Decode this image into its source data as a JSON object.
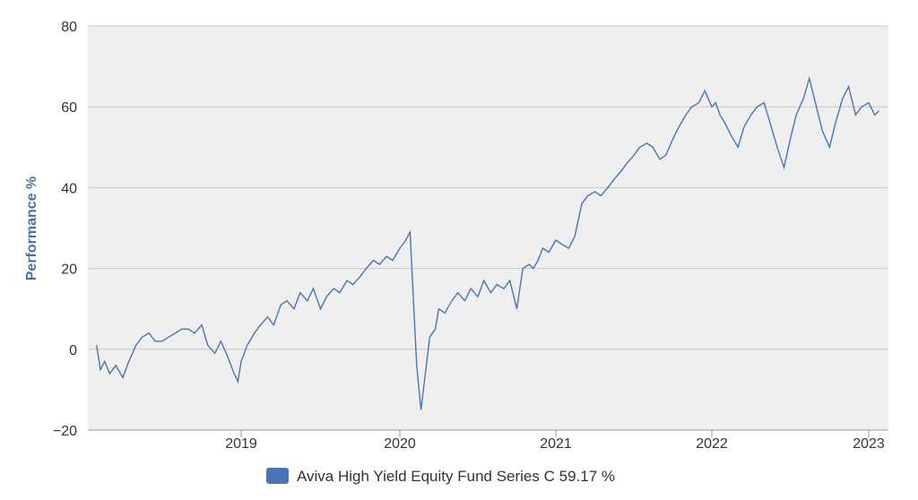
{
  "chart_data": {
    "type": "line",
    "title": "",
    "xlabel": "",
    "ylabel": "Performance %",
    "ylim": [
      -20,
      80
    ],
    "y_ticks": [
      "80",
      "60",
      "40",
      "20",
      "0",
      "−20"
    ],
    "x_ticks": [
      "2019",
      "2020",
      "2021",
      "2022",
      "2023"
    ],
    "grid": true,
    "legend_position": "bottom-center",
    "colors": {
      "series": "#4a74b4",
      "plot_bg": "#efefef",
      "grid": "#c8c8c8"
    },
    "series": [
      {
        "name": "Aviva High Yield Equity Fund Series C 59.17 %",
        "x": [
          "2018-02",
          "2018-02-10",
          "2018-02-20",
          "2018-03",
          "2018-03-15",
          "2018-04-01",
          "2018-04-15",
          "2018-05-01",
          "2018-05-15",
          "2018-06-01",
          "2018-06-15",
          "2018-07-01",
          "2018-07-15",
          "2018-08-01",
          "2018-08-15",
          "2018-09-01",
          "2018-09-15",
          "2018-10-01",
          "2018-10-15",
          "2018-11-01",
          "2018-11-15",
          "2018-12-01",
          "2018-12-15",
          "2018-12-24",
          "2019-01-01",
          "2019-01-15",
          "2019-02-01",
          "2019-02-15",
          "2019-03-01",
          "2019-03-15",
          "2019-04-01",
          "2019-04-15",
          "2019-05-01",
          "2019-05-15",
          "2019-06-01",
          "2019-06-15",
          "2019-07-01",
          "2019-07-15",
          "2019-08-01",
          "2019-08-15",
          "2019-09-01",
          "2019-09-15",
          "2019-10-01",
          "2019-10-15",
          "2019-11-01",
          "2019-11-15",
          "2019-12-01",
          "2019-12-15",
          "2020-01-01",
          "2020-01-15",
          "2020-01-25",
          "2020-02-10",
          "2020-02-20",
          "2020-03-01",
          "2020-03-10",
          "2020-03-23",
          "2020-04-01",
          "2020-04-15",
          "2020-05-01",
          "2020-05-15",
          "2020-06-01",
          "2020-06-15",
          "2020-07-01",
          "2020-07-15",
          "2020-08-01",
          "2020-08-15",
          "2020-09-01",
          "2020-09-15",
          "2020-10-01",
          "2020-10-15",
          "2020-10-30",
          "2020-11-09",
          "2020-11-20",
          "2020-12-01",
          "2020-12-15",
          "2021-01-01",
          "2021-01-15",
          "2021-02-01",
          "2021-02-15",
          "2021-03-01",
          "2021-03-15",
          "2021-04-01",
          "2021-04-15",
          "2021-05-01",
          "2021-05-15",
          "2021-06-01",
          "2021-06-15",
          "2021-07-01",
          "2021-07-15",
          "2021-08-01",
          "2021-08-15",
          "2021-09-01",
          "2021-09-15",
          "2021-10-01",
          "2021-10-15",
          "2021-11-01",
          "2021-11-15",
          "2021-12-01",
          "2021-12-15",
          "2022-01-01",
          "2022-01-10",
          "2022-01-20",
          "2022-02-01",
          "2022-02-15",
          "2022-03-01",
          "2022-03-15",
          "2022-04-01",
          "2022-04-15",
          "2022-05-01",
          "2022-05-15",
          "2022-06-01",
          "2022-06-17",
          "2022-07-01",
          "2022-07-15",
          "2022-08-01",
          "2022-08-15",
          "2022-09-01",
          "2022-09-15",
          "2022-10-01",
          "2022-10-15",
          "2022-11-01",
          "2022-11-15",
          "2022-12-01",
          "2022-12-15",
          "2023-01-01",
          "2023-01-15",
          "2023-01-25"
        ],
        "values": [
          1,
          -5,
          -3,
          -6,
          -4,
          -7,
          -3,
          1,
          3,
          4,
          2,
          2,
          3,
          4,
          5,
          5,
          4,
          6,
          1,
          -1,
          2,
          -2,
          -6,
          -8,
          -3,
          1,
          4,
          6,
          8,
          6,
          11,
          12,
          10,
          14,
          12,
          15,
          10,
          13,
          15,
          14,
          17,
          16,
          18,
          20,
          22,
          21,
          23,
          22,
          25,
          27,
          29,
          -4,
          -15,
          -5,
          3,
          5,
          10,
          9,
          12,
          14,
          12,
          15,
          13,
          17,
          14,
          16,
          15,
          17,
          10,
          20,
          21,
          20,
          22,
          25,
          24,
          27,
          26,
          25,
          28,
          36,
          38,
          39,
          38,
          40,
          42,
          44,
          46,
          48,
          50,
          51,
          50,
          47,
          48,
          52,
          55,
          58,
          60,
          61,
          64,
          60,
          61,
          58,
          56,
          53,
          50,
          55,
          58,
          60,
          61,
          56,
          50,
          45,
          52,
          58,
          62,
          67,
          60,
          54,
          50,
          56,
          62,
          65,
          58,
          60,
          61,
          58,
          59
        ]
      }
    ]
  }
}
